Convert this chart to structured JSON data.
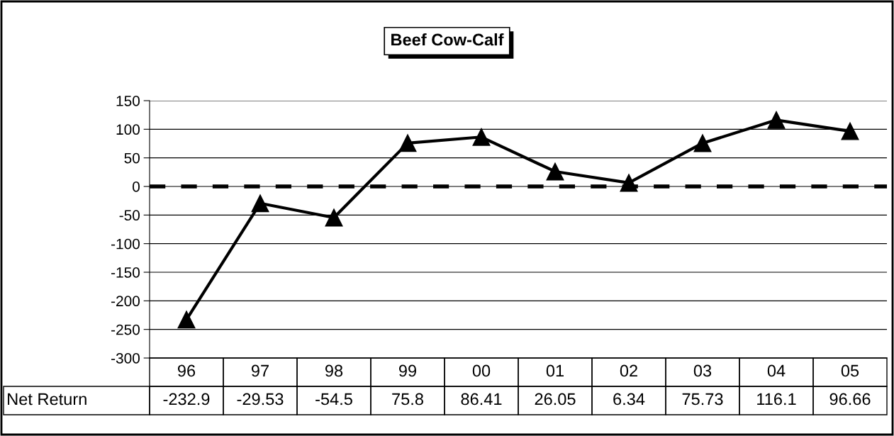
{
  "chart_data": {
    "type": "line",
    "title": "Beef Cow-Calf",
    "categories": [
      "96",
      "97",
      "98",
      "99",
      "00",
      "01",
      "02",
      "03",
      "04",
      "05"
    ],
    "series": [
      {
        "name": "Net Return",
        "color": "#000000",
        "values": [
          -232.9,
          -29.53,
          -54.5,
          75.8,
          86.41,
          26.05,
          6.34,
          75.73,
          116.1,
          96.66
        ]
      }
    ],
    "ylim": [
      -300,
      150
    ],
    "yticks": [
      -300,
      -250,
      -200,
      -150,
      -100,
      -50,
      0,
      50,
      100,
      150
    ],
    "grid": "y",
    "legend": false,
    "marker": "triangle",
    "line_style": "solid",
    "data_labels": true,
    "ref_lines": [
      {
        "axis": "y",
        "value": 0,
        "label": null,
        "color": "#000000",
        "line_style": "dashed"
      }
    ]
  }
}
